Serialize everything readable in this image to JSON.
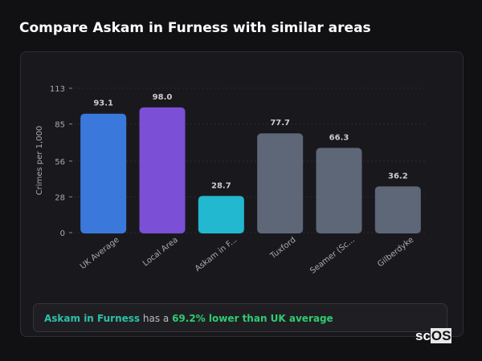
{
  "title": "Compare Askam in Furness with similar areas",
  "chart_data": {
    "type": "bar",
    "title": "",
    "xlabel": "",
    "ylabel": "Crimes per 1,000",
    "ylim": [
      0,
      113
    ],
    "yticks": [
      0,
      28,
      56,
      85,
      113
    ],
    "grid": true,
    "categories": [
      "UK Average",
      "Local Area",
      "Askam in F...",
      "Tuxford",
      "Seamer (Sc...",
      "Gilberdyke"
    ],
    "values": [
      93.1,
      98.0,
      28.7,
      77.7,
      66.3,
      36.2
    ],
    "value_labels": [
      "93.1",
      "98.0",
      "28.7",
      "77.7",
      "66.3",
      "36.2"
    ],
    "colors": [
      "#3b78dc",
      "#7b4fd6",
      "#22b8cf",
      "#5d6778",
      "#5d6778",
      "#5d6778"
    ]
  },
  "note": {
    "area": "Askam in Furness",
    "middle": " has a ",
    "stat": "69.2% lower than UK average"
  },
  "logo": {
    "sc": "sc",
    "os": "OS"
  }
}
